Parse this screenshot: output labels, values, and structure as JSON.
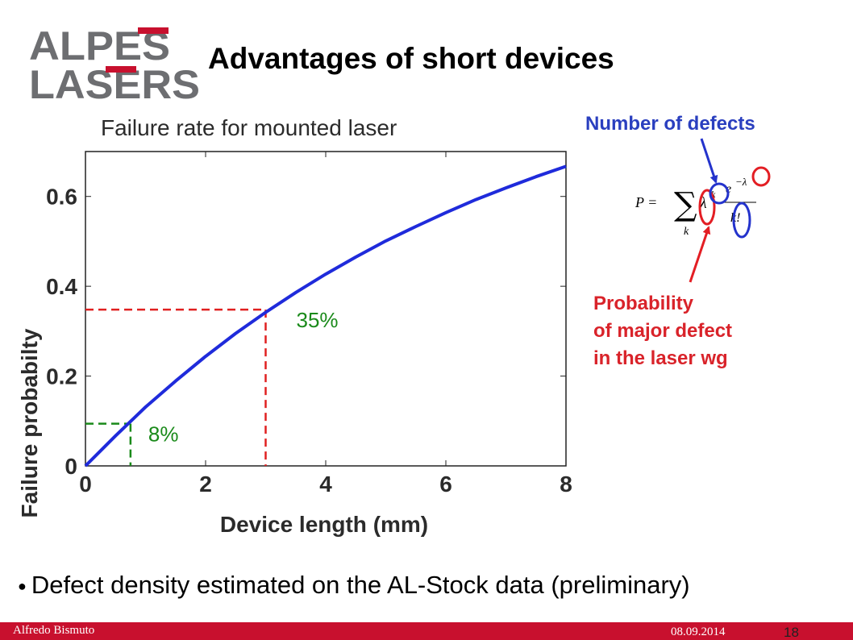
{
  "logo": {
    "line1": "ALPES",
    "line2": "LASERS"
  },
  "slide": {
    "title": "Advantages of short devices"
  },
  "chart_data": {
    "type": "line",
    "title": "Failure rate for mounted laser",
    "xlabel": "Device length (mm)",
    "ylabel": "Failure probabilty",
    "xlim": [
      0,
      8
    ],
    "ylim": [
      0,
      0.7
    ],
    "x_ticks": [
      "0",
      "2",
      "4",
      "6",
      "8"
    ],
    "y_ticks": [
      "0",
      "0.2",
      "0.4",
      "0.6"
    ],
    "series": [
      {
        "color": "#1f2bdb",
        "x": [
          0,
          0.5,
          1,
          1.5,
          2,
          2.5,
          3,
          3.5,
          4,
          4.5,
          5,
          5.5,
          6,
          6.5,
          7,
          7.5,
          8
        ],
        "y": [
          0,
          0.067,
          0.131,
          0.189,
          0.244,
          0.295,
          0.342,
          0.386,
          0.427,
          0.465,
          0.501,
          0.533,
          0.564,
          0.593,
          0.619,
          0.644,
          0.667
        ]
      }
    ],
    "annotations": [
      {
        "text": "8%",
        "x": 0.75,
        "y": 0.094,
        "color": "#1a8a1a"
      },
      {
        "text": "35%",
        "x": 3.0,
        "y": 0.348,
        "color": "#1a8a1a",
        "line_color": "#e02020"
      }
    ],
    "grid": false
  },
  "formula": {
    "lhs": "P =",
    "sum_index": "k",
    "lambda_k": "λ",
    "k_exp": "k",
    "exp_term": "e",
    "exp_power": "−λ",
    "denominator": "k!"
  },
  "labels": {
    "defects": "Number of defects",
    "probability": [
      "Probability",
      "of major defect",
      "in the laser wg"
    ]
  },
  "bullet": "Defect density estimated on the AL-Stock data (preliminary)",
  "footer": {
    "author": "Alfredo Bismuto",
    "date": "08.09.2014",
    "page": "18"
  },
  "colors": {
    "accent_red": "#c8102e",
    "blue_label": "#2a3fbf",
    "red_label": "#d9232a",
    "logo_gray": "#6d6e71"
  }
}
